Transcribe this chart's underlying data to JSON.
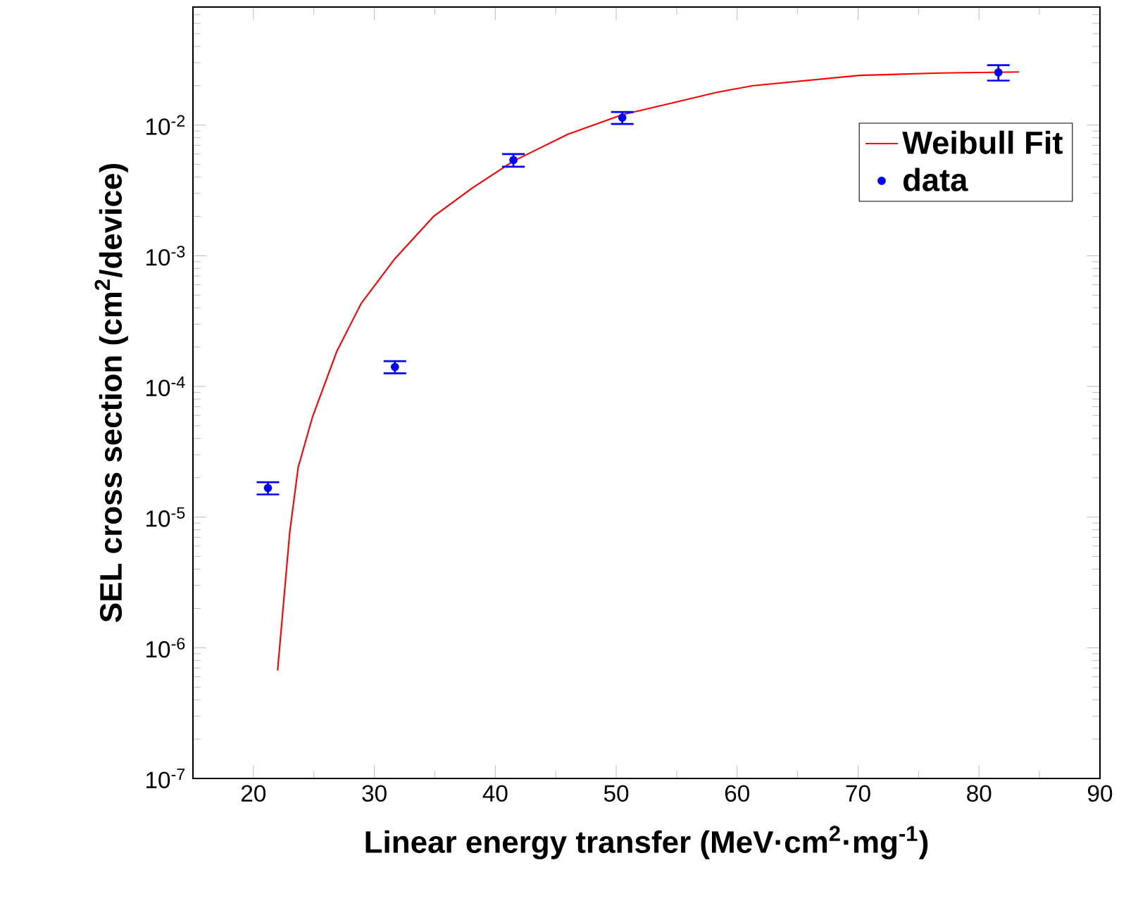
{
  "chart_data": {
    "type": "scatter",
    "xlabel": "Linear energy transfer (MeV·cm$^{2}$·mg$^{-1}$)",
    "ylabel": "SEL cross section (cm$^{2}$/device)",
    "xlim": [
      15,
      90
    ],
    "xticks": [
      20,
      30,
      40,
      50,
      60,
      70,
      80,
      90
    ],
    "ylim": [
      1e-07,
      0.08
    ],
    "log": "y",
    "yticks": [
      {
        "value": 1e-07,
        "label": "10$^{-7}$"
      },
      {
        "value": 1e-06,
        "label": "10$^{-6}$"
      },
      {
        "value": 1e-05,
        "label": "10$^{-5}$"
      },
      {
        "value": 0.0001,
        "label": "10$^{-4}$"
      },
      {
        "value": 0.001,
        "label": "10$^{-3}$"
      },
      {
        "value": 0.01,
        "label": "10$^{-2}$"
      }
    ],
    "grid": false,
    "legend": "top right",
    "series": [
      {
        "name": "Weibull Fit",
        "type": "line",
        "color": "#ff0000",
        "marker": "none",
        "line_style": "solid",
        "x": [
          22.0,
          23.0,
          23.7,
          24.9,
          26.9,
          28.9,
          31.7,
          34.9,
          38.1,
          41.5,
          46.0,
          50.5,
          54.7,
          58.3,
          61.3,
          70.1,
          76.8,
          83.3
        ],
        "values": [
          6.7e-07,
          7.6e-06,
          2.4e-05,
          5.9e-05,
          0.000186,
          0.00043,
          0.00095,
          0.002,
          0.0033,
          0.0053,
          0.0085,
          0.012,
          0.0148,
          0.0178,
          0.02,
          0.024,
          0.025,
          0.0255
        ]
      },
      {
        "name": "data",
        "color": "#0000ff",
        "marker": "circle",
        "x": [
          21.2,
          31.7,
          41.5,
          50.5,
          81.6
        ],
        "values": [
          1.67e-05,
          0.000141,
          0.0054,
          0.0114,
          0.0253
        ],
        "errors": [
          1.8e-06,
          1.5e-05,
          0.0006,
          0.0012,
          0.0034
        ]
      }
    ]
  }
}
